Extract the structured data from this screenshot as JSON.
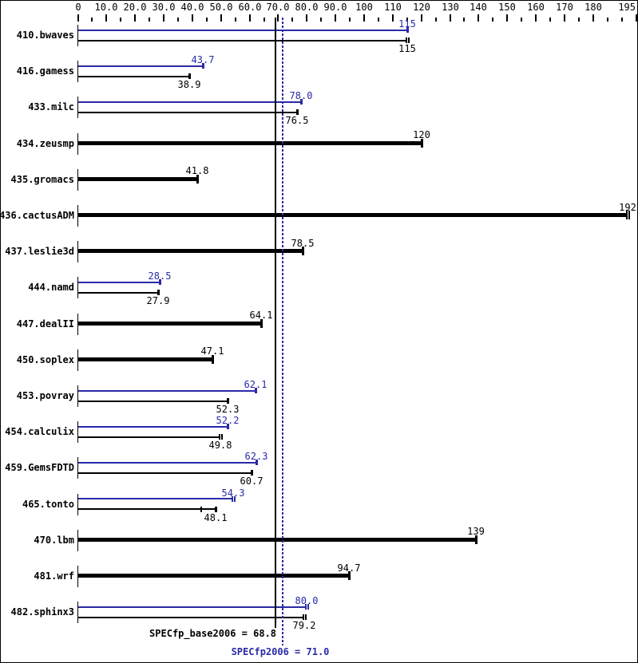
{
  "chart_data": {
    "type": "bar",
    "orientation": "horizontal",
    "title": "",
    "xlabel": "",
    "legend": "none",
    "grid": false,
    "axis": {
      "min": 0,
      "max": 195,
      "major_ticks": [
        0,
        10,
        20,
        30,
        40,
        50,
        60,
        70,
        80,
        90,
        100,
        110,
        120,
        130,
        140,
        150,
        160,
        170,
        180,
        195
      ],
      "major_tick_labels": [
        "0",
        "10.0",
        "20.0",
        "30.0",
        "40.0",
        "50.0",
        "60.0",
        "70.0",
        "80.0",
        "90.0",
        "100",
        "110",
        "120",
        "130",
        "140",
        "150",
        "160",
        "170",
        "180",
        "195"
      ],
      "minor_ticks": [
        5,
        15,
        25,
        35,
        45,
        55,
        65,
        75,
        85,
        95,
        105,
        115,
        125,
        135,
        145,
        155,
        165,
        175,
        185,
        190
      ]
    },
    "colors": {
      "peak": "#2a2aa8",
      "base": "#000000",
      "background": "#ffffff"
    },
    "series": [
      {
        "name": "SPECfp2006 (peak)",
        "color": "#2a2aa8"
      },
      {
        "name": "SPECfp_base2006 (base)",
        "color": "#000000"
      }
    ],
    "rows": [
      {
        "name": "410.bwaves",
        "type": "pair",
        "peak": 115,
        "peak_label": "115",
        "peak_double_cap": false,
        "base": 115,
        "base_label": "115",
        "base_double_cap": true
      },
      {
        "name": "416.gamess",
        "type": "pair",
        "peak": 43.7,
        "peak_label": "43.7",
        "peak_double_cap": false,
        "base": 38.9,
        "base_label": "38.9",
        "base_double_cap": false
      },
      {
        "name": "433.milc",
        "type": "pair",
        "peak": 78.0,
        "peak_label": "78.0",
        "peak_double_cap": false,
        "base": 76.5,
        "base_label": "76.5",
        "base_double_cap": false
      },
      {
        "name": "434.zeusmp",
        "type": "single",
        "base": 120,
        "base_label": "120",
        "base_double_cap": false
      },
      {
        "name": "435.gromacs",
        "type": "single",
        "base": 41.8,
        "base_label": "41.8",
        "base_double_cap": false
      },
      {
        "name": "436.cactusADM",
        "type": "single",
        "base": 192,
        "base_label": "192",
        "base_double_cap": true
      },
      {
        "name": "437.leslie3d",
        "type": "single",
        "base": 78.5,
        "base_label": "78.5",
        "base_double_cap": false
      },
      {
        "name": "444.namd",
        "type": "pair",
        "peak": 28.5,
        "peak_label": "28.5",
        "peak_double_cap": false,
        "base": 27.9,
        "base_label": "27.9",
        "base_double_cap": false
      },
      {
        "name": "447.dealII",
        "type": "single",
        "base": 64.1,
        "base_label": "64.1",
        "base_double_cap": false
      },
      {
        "name": "450.soplex",
        "type": "single",
        "base": 47.1,
        "base_label": "47.1",
        "base_double_cap": false
      },
      {
        "name": "453.povray",
        "type": "pair",
        "peak": 62.1,
        "peak_label": "62.1",
        "peak_double_cap": false,
        "base": 52.3,
        "base_label": "52.3",
        "base_double_cap": false
      },
      {
        "name": "454.calculix",
        "type": "pair",
        "peak": 52.2,
        "peak_label": "52.2",
        "peak_double_cap": false,
        "base": 49.8,
        "base_label": "49.8",
        "base_double_cap": true
      },
      {
        "name": "459.GemsFDTD",
        "type": "pair",
        "peak": 62.3,
        "peak_label": "62.3",
        "peak_double_cap": false,
        "base": 60.7,
        "base_label": "60.7",
        "base_double_cap": false
      },
      {
        "name": "465.tonto",
        "type": "pair",
        "peak": 54.3,
        "peak_label": "54.3",
        "peak_double_cap": true,
        "base": 48.1,
        "base_label": "48.1",
        "base_double_cap": false,
        "base_extra_tick": 43.2
      },
      {
        "name": "470.lbm",
        "type": "single",
        "base": 139,
        "base_label": "139",
        "base_double_cap": false
      },
      {
        "name": "481.wrf",
        "type": "single",
        "base": 94.7,
        "base_label": "94.7",
        "base_double_cap": false
      },
      {
        "name": "482.sphinx3",
        "type": "pair",
        "peak": 80.0,
        "peak_label": "80.0",
        "peak_double_cap": true,
        "base": 79.2,
        "base_label": "79.2",
        "base_double_cap": true
      }
    ],
    "base_line": {
      "value": 68.8,
      "label": "SPECfp_base2006 = 68.8",
      "style": "solid"
    },
    "peak_line": {
      "value": 71.0,
      "label": "SPECfp2006 = 71.0",
      "style": "dotted"
    }
  }
}
